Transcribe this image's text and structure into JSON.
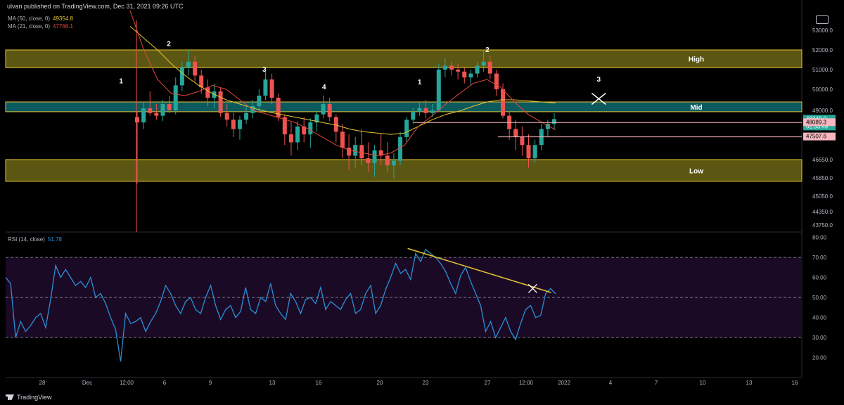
{
  "header": {
    "published": "ulvan published on TradingView.com, Dec 31, 2021 09:26 UTC"
  },
  "indicators": {
    "ma50": {
      "label": "MA (50, close, 0)",
      "value": "49354.8",
      "color": "#e6c534"
    },
    "ma21": {
      "label": "MA (21, close, 0)",
      "value": "47766.1",
      "color": "#e0483b"
    },
    "rsi": {
      "label": "RSI (14, close)",
      "value": "51.78",
      "color": "#2b8fd6"
    }
  },
  "brand": {
    "footer": "TradingView"
  },
  "colors": {
    "up": "#26a69a",
    "down": "#ef5350",
    "zone_yellow": "#6b6615",
    "zone_teal": "#0f6a6e",
    "rsi_band": "#1b0a26",
    "trendline": "#e6c534"
  },
  "chart_data": [
    {
      "type": "candlestick",
      "title": "BTC price",
      "y_axis_ticks": [
        "53000.0",
        "52000.0",
        "51000.0",
        "50000.0",
        "49000.0",
        "48000.0",
        "46650.0",
        "45850.0",
        "45050.0",
        "44350.0",
        "43750.0"
      ],
      "x_axis_ticks": [
        "28",
        "Dec",
        "12:00",
        "6",
        "9",
        "13",
        "16",
        "20",
        "23",
        "27",
        "12:00",
        "2022",
        "4",
        "7",
        "10",
        "13",
        "16"
      ],
      "zones": [
        {
          "label": "High",
          "from": 51100,
          "to": 52000
        },
        {
          "label": "Mid",
          "from": 48900,
          "to": 49400
        },
        {
          "label": "Low",
          "from": 45700,
          "to": 46650
        }
      ],
      "price_labels": [
        {
          "text": "48349.0",
          "sub": "02:33:49",
          "value": 48349.0,
          "color": "#26a69a"
        },
        {
          "text": "48089.3",
          "value": 48089.3,
          "color": "#f7b7c0"
        },
        {
          "text": "47507.6",
          "value": 47507.6,
          "color": "#f7b7c0"
        }
      ],
      "horizontal_lines": [
        48089.3,
        47507.6
      ],
      "annotations": [
        {
          "text": "1",
          "x": 0.145,
          "y": 50300
        },
        {
          "text": "2",
          "x": 0.205,
          "y": 52200
        },
        {
          "text": "3",
          "x": 0.325,
          "y": 50900
        },
        {
          "text": "4",
          "x": 0.4,
          "y": 50000
        },
        {
          "text": "1",
          "x": 0.52,
          "y": 50250
        },
        {
          "text": "2",
          "x": 0.605,
          "y": 51900
        },
        {
          "text": "3",
          "x": 0.745,
          "y": 50400
        }
      ],
      "cross_marker": {
        "x": 0.745,
        "y": 49550
      },
      "series": [
        {
          "name": "Price",
          "ohlc": [
            [
              48500,
              48900,
              45600,
              48100
            ],
            [
              48100,
              49400,
              47800,
              49100
            ],
            [
              49100,
              49900,
              48600,
              48800
            ],
            [
              48800,
              49300,
              48300,
              48600
            ],
            [
              48600,
              49500,
              48200,
              49300
            ],
            [
              49300,
              49700,
              48800,
              49000
            ],
            [
              49000,
              50600,
              48700,
              50200
            ],
            [
              50200,
              51400,
              49900,
              51100
            ],
            [
              51100,
              52000,
              50700,
              51400
            ],
            [
              51400,
              51700,
              50400,
              50700
            ],
            [
              50700,
              51000,
              49800,
              50100
            ],
            [
              50100,
              50500,
              49200,
              49600
            ],
            [
              49600,
              50300,
              49100,
              49900
            ],
            [
              49900,
              50100,
              48500,
              48800
            ],
            [
              48800,
              49300,
              47900,
              48300
            ],
            [
              48300,
              48800,
              47500,
              47800
            ],
            [
              47800,
              48600,
              47400,
              48300
            ],
            [
              48300,
              49200,
              48000,
              48800
            ],
            [
              48800,
              49500,
              48400,
              49200
            ],
            [
              49200,
              50000,
              48800,
              49700
            ],
            [
              49700,
              50900,
              49500,
              50500
            ],
            [
              50500,
              50800,
              49300,
              49600
            ],
            [
              49600,
              49800,
              48200,
              48500
            ],
            [
              48500,
              48700,
              47200,
              47600
            ],
            [
              47600,
              48100,
              46800,
              47300
            ],
            [
              47300,
              48200,
              47000,
              47900
            ],
            [
              47900,
              48500,
              47300,
              47600
            ],
            [
              47600,
              48400,
              47100,
              48100
            ],
            [
              48100,
              49000,
              47700,
              48700
            ],
            [
              48700,
              49700,
              48400,
              49300
            ],
            [
              49300,
              49600,
              48200,
              48500
            ],
            [
              48500,
              48700,
              47300,
              47700
            ],
            [
              47700,
              48000,
              46700,
              47100
            ],
            [
              47100,
              47600,
              46200,
              46800
            ],
            [
              46800,
              47500,
              46300,
              47200
            ],
            [
              47200,
              47800,
              46400,
              46700
            ],
            [
              46700,
              47300,
              46100,
              46500
            ],
            [
              46500,
              47200,
              45900,
              47000
            ],
            [
              47000,
              47600,
              46400,
              46800
            ],
            [
              46800,
              47300,
              46100,
              46400
            ],
            [
              46400,
              46900,
              45800,
              46600
            ],
            [
              46600,
              47700,
              46400,
              47500
            ],
            [
              47500,
              48500,
              47300,
              48300
            ],
            [
              48300,
              49100,
              48000,
              48900
            ],
            [
              48900,
              49400,
              48600,
              49100
            ],
            [
              49100,
              49500,
              48400,
              48800
            ],
            [
              48800,
              49300,
              48500,
              49000
            ],
            [
              49000,
              51300,
              48900,
              51000
            ],
            [
              51000,
              51600,
              50600,
              51200
            ],
            [
              51200,
              51400,
              50700,
              51000
            ],
            [
              51000,
              51300,
              50500,
              50900
            ],
            [
              50900,
              51100,
              50300,
              50600
            ],
            [
              50600,
              51000,
              50200,
              50800
            ],
            [
              50800,
              51400,
              50600,
              51200
            ],
            [
              51200,
              52000,
              50900,
              51400
            ],
            [
              51400,
              51700,
              50500,
              50800
            ],
            [
              50800,
              51000,
              49700,
              50000
            ],
            [
              50000,
              50300,
              48400,
              48600
            ],
            [
              48600,
              48900,
              47400,
              47800
            ],
            [
              47800,
              48300,
              47000,
              47500
            ],
            [
              47500,
              47900,
              46800,
              47200
            ],
            [
              47200,
              47600,
              46300,
              46700
            ],
            [
              46700,
              47400,
              46500,
              47200
            ],
            [
              47200,
              48000,
              47000,
              47800
            ],
            [
              47800,
              48300,
              47500,
              48000
            ],
            [
              48000,
              48800,
              47800,
              48349
            ]
          ]
        },
        {
          "name": "MA (50, close, 0)",
          "values": [
            53200,
            52600,
            52000,
            51300,
            50700,
            50200,
            49800,
            49500,
            49300,
            49100,
            48900,
            48700,
            48500,
            48300,
            48100,
            47950,
            47800,
            47700,
            47650,
            47600,
            47650,
            47900,
            48300,
            48700,
            48950,
            49200,
            49400,
            49500,
            49500,
            49450,
            49400,
            49354.8
          ]
        },
        {
          "name": "MA (21, close, 0)",
          "values": [
            54000,
            52000,
            50500,
            49800,
            49700,
            49900,
            50200,
            50000,
            49500,
            49000,
            48700,
            48400,
            48100,
            47800,
            47500,
            47200,
            47000,
            46900,
            46800,
            46900,
            47200,
            47900,
            48600,
            49300,
            49800,
            50300,
            50500,
            50100,
            49400,
            48700,
            48100,
            47766.1
          ]
        }
      ]
    },
    {
      "type": "line",
      "title": "RSI (14, close)",
      "y_axis_ticks": [
        "80.00",
        "70.00",
        "60.00",
        "50.00",
        "40.00",
        "30.00",
        "20.00"
      ],
      "ylim": [
        10,
        82
      ],
      "levels": [
        70,
        50,
        30
      ],
      "trendline": {
        "from": {
          "x": 0.505,
          "y": 74.5
        },
        "to": {
          "x": 0.685,
          "y": 52.5
        }
      },
      "cross_marker": {
        "x": 0.662,
        "y": 54.5
      },
      "series": [
        {
          "name": "RSI (14, close)",
          "values": [
            60,
            57,
            30,
            38,
            33,
            36,
            40,
            42,
            35,
            49,
            66,
            60,
            64,
            60,
            56,
            58,
            55,
            60,
            50,
            52,
            47,
            40,
            34,
            18,
            42,
            37,
            38,
            40,
            33,
            38,
            42,
            48,
            56,
            52,
            46,
            42,
            48,
            50,
            44,
            42,
            50,
            56,
            46,
            39,
            44,
            46,
            40,
            43,
            55,
            44,
            42,
            50,
            48,
            57,
            46,
            42,
            39,
            52,
            48,
            42,
            49,
            50,
            47,
            55,
            44,
            48,
            46,
            44,
            49,
            52,
            42,
            44,
            52,
            56,
            42,
            46,
            54,
            60,
            67,
            62,
            64,
            59,
            72,
            68,
            74,
            72,
            70,
            67,
            63,
            57,
            52,
            61,
            65,
            58,
            52,
            46,
            33,
            38,
            30,
            35,
            40,
            33,
            29,
            37,
            44,
            46,
            40,
            41,
            52,
            54.5,
            51.78
          ]
        }
      ]
    }
  ]
}
